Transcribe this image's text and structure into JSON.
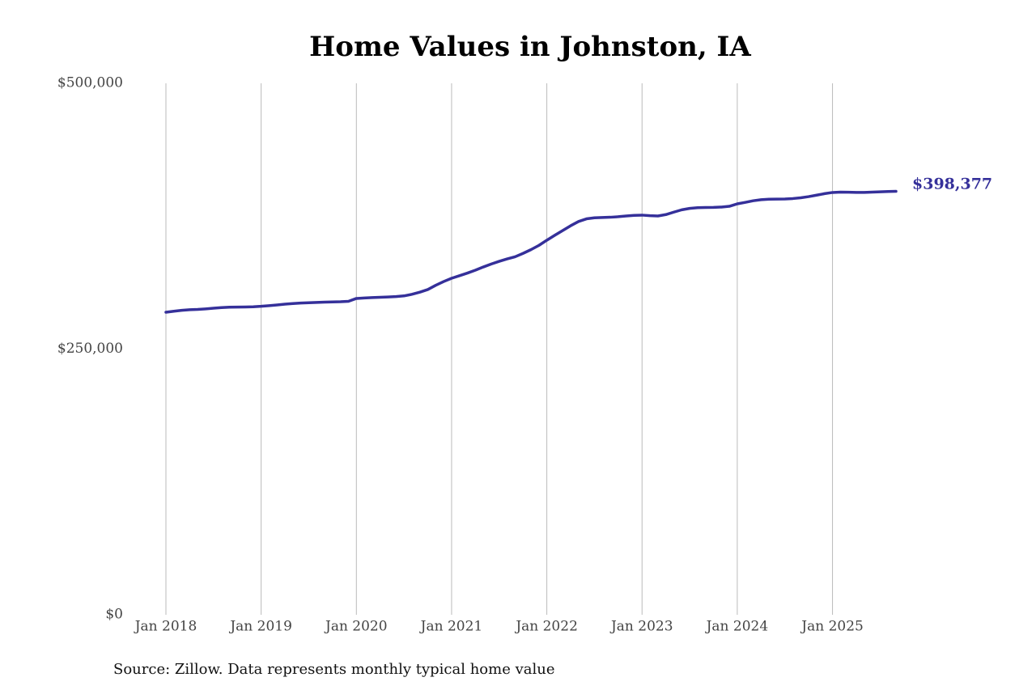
{
  "chart_data": {
    "type": "line",
    "title": "Home Values in Johnston, IA",
    "source": "Source: Zillow. Data represents monthly typical home value",
    "color": "#35309a",
    "x": [
      "2018-01",
      "2018-02",
      "2018-03",
      "2018-04",
      "2018-05",
      "2018-06",
      "2018-07",
      "2018-08",
      "2018-09",
      "2018-10",
      "2018-11",
      "2018-12",
      "2019-01",
      "2019-02",
      "2019-03",
      "2019-04",
      "2019-05",
      "2019-06",
      "2019-07",
      "2019-08",
      "2019-09",
      "2019-10",
      "2019-11",
      "2019-12",
      "2020-01",
      "2020-02",
      "2020-03",
      "2020-04",
      "2020-05",
      "2020-06",
      "2020-07",
      "2020-08",
      "2020-09",
      "2020-10",
      "2020-11",
      "2020-12",
      "2021-01",
      "2021-02",
      "2021-03",
      "2021-04",
      "2021-05",
      "2021-06",
      "2021-07",
      "2021-08",
      "2021-09",
      "2021-10",
      "2021-11",
      "2021-12",
      "2022-01",
      "2022-02",
      "2022-03",
      "2022-04",
      "2022-05",
      "2022-06",
      "2022-07",
      "2022-08",
      "2022-09",
      "2022-10",
      "2022-11",
      "2022-12",
      "2023-01",
      "2023-02",
      "2023-03",
      "2023-04",
      "2023-05",
      "2023-06",
      "2023-07",
      "2023-08",
      "2023-09",
      "2023-10",
      "2023-11",
      "2023-12",
      "2024-01",
      "2024-02",
      "2024-03",
      "2024-04",
      "2024-05",
      "2024-06",
      "2024-07",
      "2024-08",
      "2024-09",
      "2024-10",
      "2024-11",
      "2024-12",
      "2025-01",
      "2025-02",
      "2025-03",
      "2025-04",
      "2025-05",
      "2025-06",
      "2025-07",
      "2025-08",
      "2025-09"
    ],
    "values": [
      284600,
      285600,
      286400,
      287000,
      287300,
      287800,
      288400,
      289000,
      289400,
      289500,
      289600,
      289800,
      290200,
      290800,
      291500,
      292200,
      292800,
      293300,
      293600,
      293900,
      294100,
      294300,
      294500,
      294900,
      297600,
      298000,
      298400,
      298700,
      299000,
      299400,
      300000,
      301500,
      303500,
      306000,
      310000,
      313500,
      316600,
      319000,
      321500,
      324200,
      327200,
      330000,
      332500,
      334800,
      336800,
      340000,
      343500,
      347500,
      352400,
      357000,
      361500,
      366000,
      370000,
      372500,
      373500,
      373800,
      374000,
      374500,
      375200,
      375800,
      376000,
      375500,
      375200,
      376500,
      378800,
      381000,
      382300,
      383000,
      383200,
      383300,
      383600,
      384300,
      386600,
      388000,
      389500,
      390500,
      391000,
      391100,
      391200,
      391600,
      392300,
      393400,
      394800,
      396200,
      397300,
      397600,
      397500,
      397400,
      397400,
      397600,
      397900,
      398200,
      398377
    ],
    "value_labels": [
      null,
      null,
      null,
      null,
      null,
      null,
      null,
      null,
      null,
      null,
      null,
      null,
      null,
      null,
      null,
      null,
      null,
      null,
      null,
      null,
      null,
      null,
      null,
      null,
      null,
      null,
      null,
      null,
      null,
      null,
      null,
      null,
      null,
      null,
      null,
      null,
      null,
      null,
      null,
      null,
      null,
      null,
      null,
      null,
      null,
      null,
      null,
      null,
      null,
      null,
      null,
      null,
      null,
      null,
      null,
      null,
      null,
      null,
      null,
      null,
      null,
      null,
      null,
      null,
      null,
      null,
      null,
      null,
      null,
      null,
      null,
      null,
      null,
      null,
      null,
      null,
      null,
      null,
      null,
      null,
      null,
      null,
      null,
      null,
      null,
      null,
      null,
      null,
      null,
      null,
      null,
      null,
      "$398,377"
    ],
    "xlim": [
      "2018-01",
      "2025-09"
    ],
    "xticks": [
      {
        "value": "2018-01",
        "label": "Jan 2018"
      },
      {
        "value": "2019-01",
        "label": "Jan 2019"
      },
      {
        "value": "2020-01",
        "label": "Jan 2020"
      },
      {
        "value": "2021-01",
        "label": "Jan 2021"
      },
      {
        "value": "2022-01",
        "label": "Jan 2022"
      },
      {
        "value": "2023-01",
        "label": "Jan 2023"
      },
      {
        "value": "2024-01",
        "label": "Jan 2024"
      },
      {
        "value": "2025-01",
        "label": "Jan 2025"
      }
    ],
    "ylim": [
      0,
      500000
    ],
    "yticks": [
      {
        "value": 0,
        "label": "$0"
      },
      {
        "value": 250000,
        "label": "$250,000"
      },
      {
        "value": 500000,
        "label": "$500,000"
      }
    ],
    "grid": "x"
  }
}
